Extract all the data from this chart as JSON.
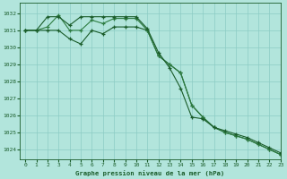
{
  "title": "Graphe pression niveau de la mer (hPa)",
  "background_color": "#b2e5dc",
  "grid_color": "#8cccc4",
  "line_color_dark": "#1a5c2a",
  "line_color_mid": "#2e7d42",
  "xlim": [
    -0.5,
    23
  ],
  "ylim": [
    1023.4,
    1032.6
  ],
  "yticks": [
    1024,
    1025,
    1026,
    1027,
    1028,
    1029,
    1030,
    1031,
    1032
  ],
  "xticks": [
    0,
    1,
    2,
    3,
    4,
    5,
    6,
    7,
    8,
    9,
    10,
    11,
    12,
    13,
    14,
    15,
    16,
    17,
    18,
    19,
    20,
    21,
    22,
    23
  ],
  "series1_x": [
    0,
    1,
    2,
    3,
    4,
    5,
    6,
    7,
    8,
    9,
    10,
    11,
    12,
    13,
    14,
    15,
    16,
    17,
    18,
    19,
    20,
    21,
    22,
    23
  ],
  "series1_y": [
    1031.0,
    1031.0,
    1031.8,
    1031.8,
    1031.3,
    1031.8,
    1031.8,
    1031.8,
    1031.8,
    1031.8,
    1031.8,
    1031.1,
    1029.7,
    1028.8,
    1027.6,
    1025.9,
    1025.8,
    1025.3,
    1025.1,
    1024.9,
    1024.7,
    1024.4,
    1024.1,
    1023.8
  ],
  "series2_x": [
    0,
    1,
    2,
    3,
    4,
    5,
    6,
    7,
    8,
    9,
    10,
    11,
    12,
    13,
    14,
    15,
    16,
    17,
    18,
    19,
    20,
    21,
    22,
    23
  ],
  "series2_y": [
    1031.0,
    1031.0,
    1031.2,
    1031.9,
    1031.0,
    1031.0,
    1031.6,
    1031.4,
    1031.7,
    1031.7,
    1031.7,
    1031.0,
    1029.5,
    1029.0,
    1028.5,
    1026.6,
    1025.9,
    1025.3,
    1025.0,
    1024.8,
    1024.6,
    1024.3,
    1024.0,
    1023.7
  ],
  "series3_x": [
    0,
    1,
    2,
    3,
    4,
    5,
    6,
    7,
    8,
    9,
    10,
    11,
    12,
    13,
    14,
    15,
    16,
    17,
    18,
    19,
    20,
    21,
    22,
    23
  ],
  "series3_y": [
    1031.0,
    1031.0,
    1031.0,
    1031.0,
    1030.5,
    1030.2,
    1031.0,
    1030.8,
    1031.2,
    1031.2,
    1031.2,
    1031.0,
    1029.5,
    1029.0,
    1028.5,
    1026.6,
    1025.9,
    1025.3,
    1025.0,
    1024.8,
    1024.6,
    1024.3,
    1024.0,
    1023.7
  ]
}
